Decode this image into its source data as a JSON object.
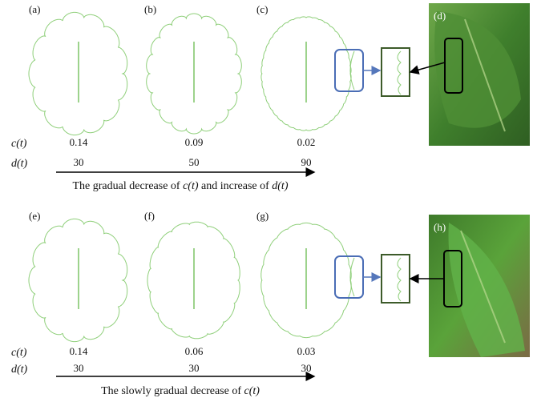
{
  "rows": [
    {
      "panels": [
        "(a)",
        "(b)",
        "(c)"
      ],
      "photo_label": "(d)",
      "c_label": "c(t)",
      "d_label": "d(t)",
      "c_values": [
        0.14,
        0.09,
        0.02
      ],
      "d_values": [
        30,
        50,
        90
      ],
      "caption": [
        "The gradual decrease of ",
        "c(t)",
        " and increase of ",
        "d(t)"
      ]
    },
    {
      "panels": [
        "(e)",
        "(f)",
        "(g)"
      ],
      "photo_label": "(h)",
      "c_label": "c(t)",
      "d_label": "d(t)",
      "c_values": [
        0.14,
        0.06,
        0.03
      ],
      "d_values": [
        30,
        30,
        30
      ],
      "caption": [
        "The slowly gradual decrease of ",
        "c(t)"
      ]
    }
  ]
}
